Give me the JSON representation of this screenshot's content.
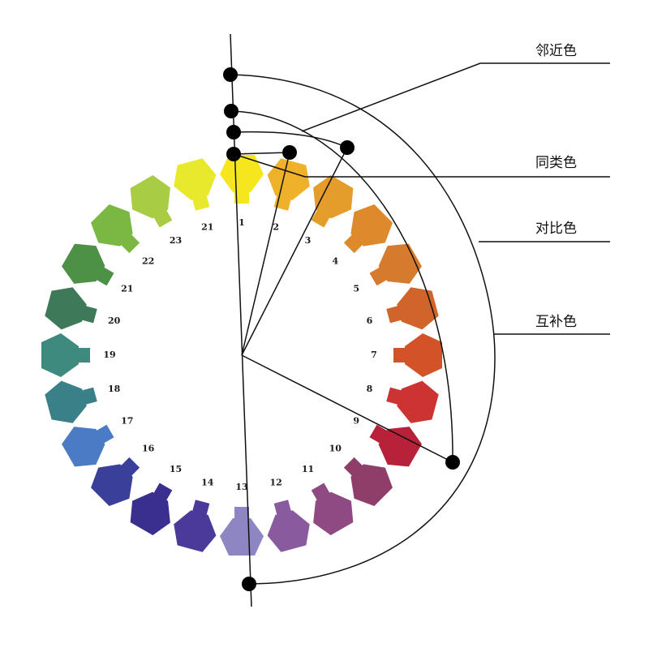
{
  "diagram": {
    "type": "color-wheel",
    "segments": [
      {
        "label": "1",
        "color": "#f5e61e"
      },
      {
        "label": "2",
        "color": "#efb02a"
      },
      {
        "label": "3",
        "color": "#e49c2b"
      },
      {
        "label": "4",
        "color": "#dd8a2c"
      },
      {
        "label": "5",
        "color": "#d67b2e"
      },
      {
        "label": "6",
        "color": "#d0642b"
      },
      {
        "label": "7",
        "color": "#d35328"
      },
      {
        "label": "8",
        "color": "#cc3333"
      },
      {
        "label": "9",
        "color": "#b7213a"
      },
      {
        "label": "10",
        "color": "#8f3e6a"
      },
      {
        "label": "11",
        "color": "#8f4a83"
      },
      {
        "label": "12",
        "color": "#8a5a9e"
      },
      {
        "label": "13",
        "color": "#8e86c2"
      },
      {
        "label": "14",
        "color": "#4b3a9a"
      },
      {
        "label": "15",
        "color": "#3a2f8f"
      },
      {
        "label": "16",
        "color": "#3a3f9a"
      },
      {
        "label": "17",
        "color": "#4a7bc4"
      },
      {
        "label": "18",
        "color": "#3a8088"
      },
      {
        "label": "19",
        "color": "#3f8a7f"
      },
      {
        "label": "20",
        "color": "#3e7a5a"
      },
      {
        "label": "21",
        "color": "#4d9146"
      },
      {
        "label": "22",
        "color": "#7ab843"
      },
      {
        "label": "23",
        "color": "#a9cc45"
      },
      {
        "label": "21",
        "color": "#e8e82c"
      }
    ],
    "annotations": {
      "adjacent": "邻近色",
      "analogous": "同类色",
      "contrast": "对比色",
      "complementary": "互补色"
    }
  }
}
